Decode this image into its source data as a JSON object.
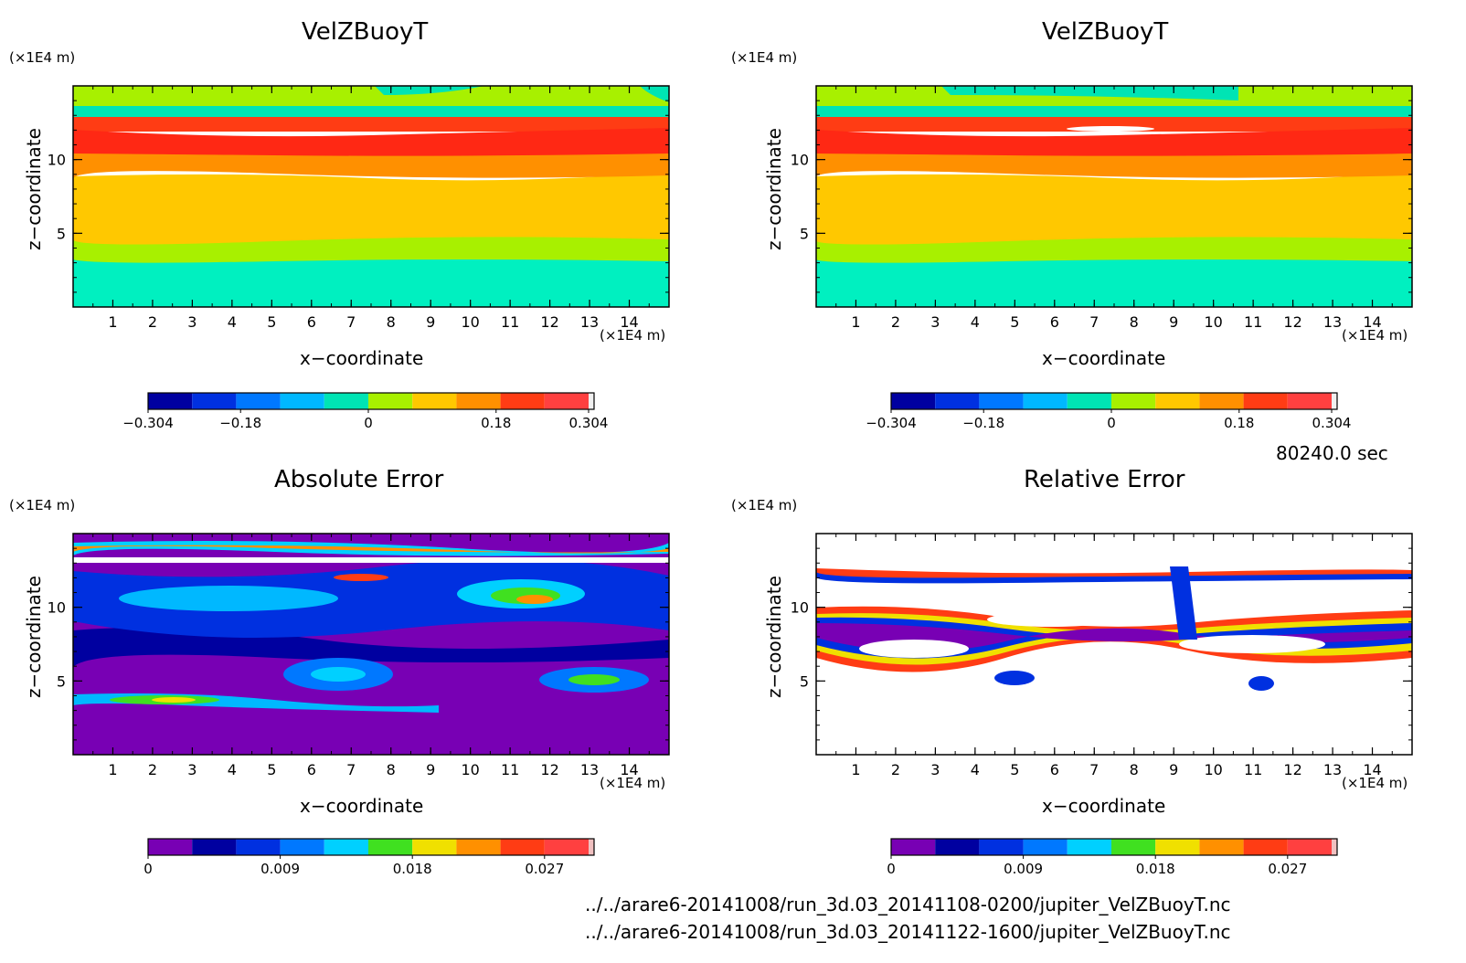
{
  "page": {
    "time_label": "80240.0 sec",
    "files": [
      "../../arare6-20141008/run_3d.03_20141108-0200/jupiter_VelZBuoyT.nc",
      "../../arare6-20141008/run_3d.03_20141122-1600/jupiter_VelZBuoyT.nc"
    ]
  },
  "panels": [
    {
      "title": "VelZBuoyT",
      "xlabel": "x−coordinate",
      "ylabel": "z−coordinate",
      "unit_x": "(×1E4 m)",
      "unit_y": "(×1E4 m)"
    },
    {
      "title": "VelZBuoyT",
      "xlabel": "x−coordinate",
      "ylabel": "z−coordinate",
      "unit_x": "(×1E4 m)",
      "unit_y": "(×1E4 m)"
    },
    {
      "title": "Absolute Error",
      "xlabel": "x−coordinate",
      "ylabel": "z−coordinate",
      "unit_x": "(×1E4 m)",
      "unit_y": "(×1E4 m)"
    },
    {
      "title": "Relative Error",
      "xlabel": "x−coordinate",
      "ylabel": "z−coordinate",
      "unit_x": "(×1E4 m)",
      "unit_y": "(×1E4 m)"
    }
  ],
  "chart_data": [
    {
      "type": "heatmap",
      "title": "VelZBuoyT",
      "xlabel": "x−coordinate",
      "ylabel": "z−coordinate",
      "x_ticks": [
        "1",
        "2",
        "3",
        "4",
        "5",
        "6",
        "7",
        "8",
        "9",
        "10",
        "11",
        "12",
        "13",
        "14"
      ],
      "y_ticks": [
        "5",
        "10"
      ],
      "xlim": [
        0,
        15
      ],
      "ylim": [
        0,
        15
      ],
      "z_bands": [
        {
          "z": [
            0,
            3
          ],
          "color": "#00f0c0"
        },
        {
          "z": [
            3,
            4.5
          ],
          "color": "#00e4a0"
        },
        {
          "z": [
            4.5,
            5.5
          ],
          "color": "#a8f000"
        },
        {
          "z": [
            5.5,
            8.5
          ],
          "color": "#ffc800"
        },
        {
          "z": [
            8.5,
            10.2
          ],
          "color": "#ff9000"
        },
        {
          "z": [
            10.2,
            12.5
          ],
          "color": "#ff3c14"
        },
        {
          "z": [
            12.5,
            13.2
          ],
          "color": "#00f0c0"
        },
        {
          "z": [
            13.2,
            15
          ],
          "color": "#a8f000"
        }
      ],
      "colorbar": {
        "labels": [
          "−0.304",
          "−0.18",
          "0",
          "0.18",
          "0.304"
        ],
        "colors": [
          "#0000a0",
          "#0030e0",
          "#0078ff",
          "#00b8ff",
          "#00e4b4",
          "#a8f000",
          "#ffc800",
          "#ff9000",
          "#ff3c14",
          "#ff4040",
          "#f0f0f0"
        ]
      }
    },
    {
      "type": "heatmap",
      "title": "VelZBuoyT",
      "xlabel": "x−coordinate",
      "ylabel": "z−coordinate",
      "x_ticks": [
        "1",
        "2",
        "3",
        "4",
        "5",
        "6",
        "7",
        "8",
        "9",
        "10",
        "11",
        "12",
        "13",
        "14"
      ],
      "y_ticks": [
        "5",
        "10"
      ],
      "xlim": [
        0,
        15
      ],
      "ylim": [
        0,
        15
      ],
      "colorbar": {
        "labels": [
          "−0.304",
          "−0.18",
          "0",
          "0.18",
          "0.304"
        ],
        "colors": [
          "#0000a0",
          "#0030e0",
          "#0078ff",
          "#00b8ff",
          "#00e4b4",
          "#a8f000",
          "#ffc800",
          "#ff9000",
          "#ff3c14",
          "#ff4040",
          "#f0f0f0"
        ]
      }
    },
    {
      "type": "heatmap",
      "title": "Absolute Error",
      "xlabel": "x−coordinate",
      "ylabel": "z−coordinate",
      "x_ticks": [
        "1",
        "2",
        "3",
        "4",
        "5",
        "6",
        "7",
        "8",
        "9",
        "10",
        "11",
        "12",
        "13",
        "14"
      ],
      "y_ticks": [
        "5",
        "10"
      ],
      "xlim": [
        0,
        15
      ],
      "ylim": [
        0,
        15
      ],
      "colorbar": {
        "labels": [
          "0",
          "0.009",
          "0.018",
          "0.027"
        ],
        "colors": [
          "#7800b4",
          "#0000a0",
          "#0030e0",
          "#0078ff",
          "#00d0ff",
          "#40e020",
          "#f0e000",
          "#ff9000",
          "#ff3c14",
          "#ff4040",
          "#f0c0c0"
        ]
      }
    },
    {
      "type": "heatmap",
      "title": "Relative Error",
      "xlabel": "x−coordinate",
      "ylabel": "z−coordinate",
      "x_ticks": [
        "1",
        "2",
        "3",
        "4",
        "5",
        "6",
        "7",
        "8",
        "9",
        "10",
        "11",
        "12",
        "13",
        "14"
      ],
      "y_ticks": [
        "5",
        "10"
      ],
      "xlim": [
        0,
        15
      ],
      "ylim": [
        0,
        15
      ],
      "colorbar": {
        "labels": [
          "0",
          "0.009",
          "0.018",
          "0.027"
        ],
        "colors": [
          "#7800b4",
          "#0000a0",
          "#0030e0",
          "#0078ff",
          "#00d0ff",
          "#40e020",
          "#f0e000",
          "#ff9000",
          "#ff3c14",
          "#ff4040",
          "#f0c0c0"
        ]
      }
    }
  ]
}
